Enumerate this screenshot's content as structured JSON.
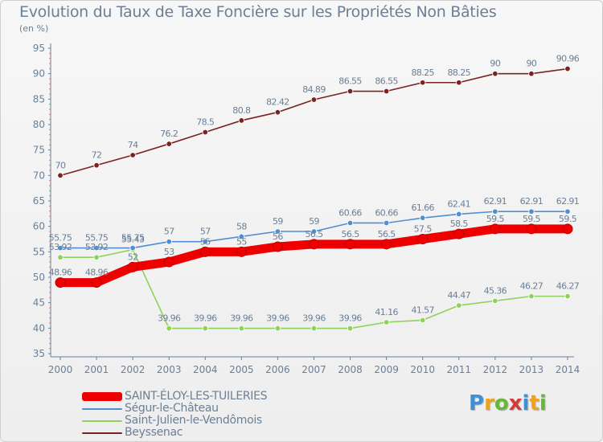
{
  "header": {
    "title": "Evolution du Taux de Taxe Foncière sur les Propriétés Non Bâties",
    "unit": "(en %)"
  },
  "logo": {
    "text": "Proxiti",
    "colors": [
      "#3f8fd6",
      "#f0a21a",
      "#67b83a",
      "#d63b3b",
      "#3f8fd6",
      "#f0a21a",
      "#67b83a"
    ]
  },
  "chart_data": {
    "type": "line",
    "title": "Evolution du Taux de Taxe Foncière sur les Propriétés Non Bâties",
    "ylabel": "(en %)",
    "xlabel": "",
    "x": [
      "2000",
      "2001",
      "2002",
      "2003",
      "2004",
      "2005",
      "2006",
      "2007",
      "2008",
      "2009",
      "2010",
      "2011",
      "2012",
      "2013",
      "2014"
    ],
    "ylim": [
      35,
      95
    ],
    "yticks": [
      35,
      40,
      45,
      50,
      55,
      60,
      65,
      70,
      75,
      80,
      85,
      90,
      95
    ],
    "grid": false,
    "legend_position": "bottom-left",
    "series": [
      {
        "name": "SAINT-ÉLOY-LES-TUILERIES",
        "color": "#ee0000",
        "values": [
          48.96,
          48.96,
          52,
          53,
          55,
          55,
          56,
          56.5,
          56.5,
          56.5,
          57.5,
          58.5,
          59.5,
          59.5,
          59.5
        ],
        "labels": [
          "48.96",
          "48.96",
          "52",
          "53",
          "55",
          "55",
          "56",
          "56.5",
          "56.5",
          "56.5",
          "57.5",
          "58.5",
          "59.5",
          "59.5",
          "59.5"
        ]
      },
      {
        "name": "Ségur-le-Château",
        "color": "#4f8fcf",
        "values": [
          55.75,
          55.75,
          55.75,
          57,
          57,
          58,
          59,
          59,
          60.66,
          60.66,
          61.66,
          62.41,
          62.91,
          62.91,
          62.91
        ],
        "labels": [
          "55.75",
          "55.75",
          "55.75",
          "57",
          "57",
          "58",
          "59",
          "59",
          "60.66",
          "60.66",
          "61.66",
          "62.41",
          "62.91",
          "62.91",
          "62.91"
        ]
      },
      {
        "name": "Saint-Julien-le-Vendômois",
        "color": "#8fd15a",
        "values": [
          53.92,
          53.92,
          55.43,
          39.96,
          39.96,
          39.96,
          39.96,
          39.96,
          39.96,
          41.16,
          41.57,
          44.47,
          45.36,
          46.27,
          46.27
        ],
        "labels": [
          "53.92",
          "53.92",
          "55.43",
          "39.96",
          "39.96",
          "39.96",
          "39.96",
          "39.96",
          "39.96",
          "41.16",
          "41.57",
          "44.47",
          "45.36",
          "46.27",
          "46.27"
        ]
      },
      {
        "name": "Beyssenac",
        "color": "#7a2323",
        "values": [
          70,
          72,
          74,
          76.2,
          78.5,
          80.8,
          82.42,
          84.89,
          86.55,
          86.55,
          88.25,
          88.25,
          90,
          90,
          90.96
        ],
        "labels": [
          "70",
          "72",
          "74",
          "76.2",
          "78.5",
          "80.8",
          "82.42",
          "84.89",
          "86.55",
          "86.55",
          "88.25",
          "88.25",
          "90",
          "90",
          "90.96"
        ]
      }
    ]
  }
}
